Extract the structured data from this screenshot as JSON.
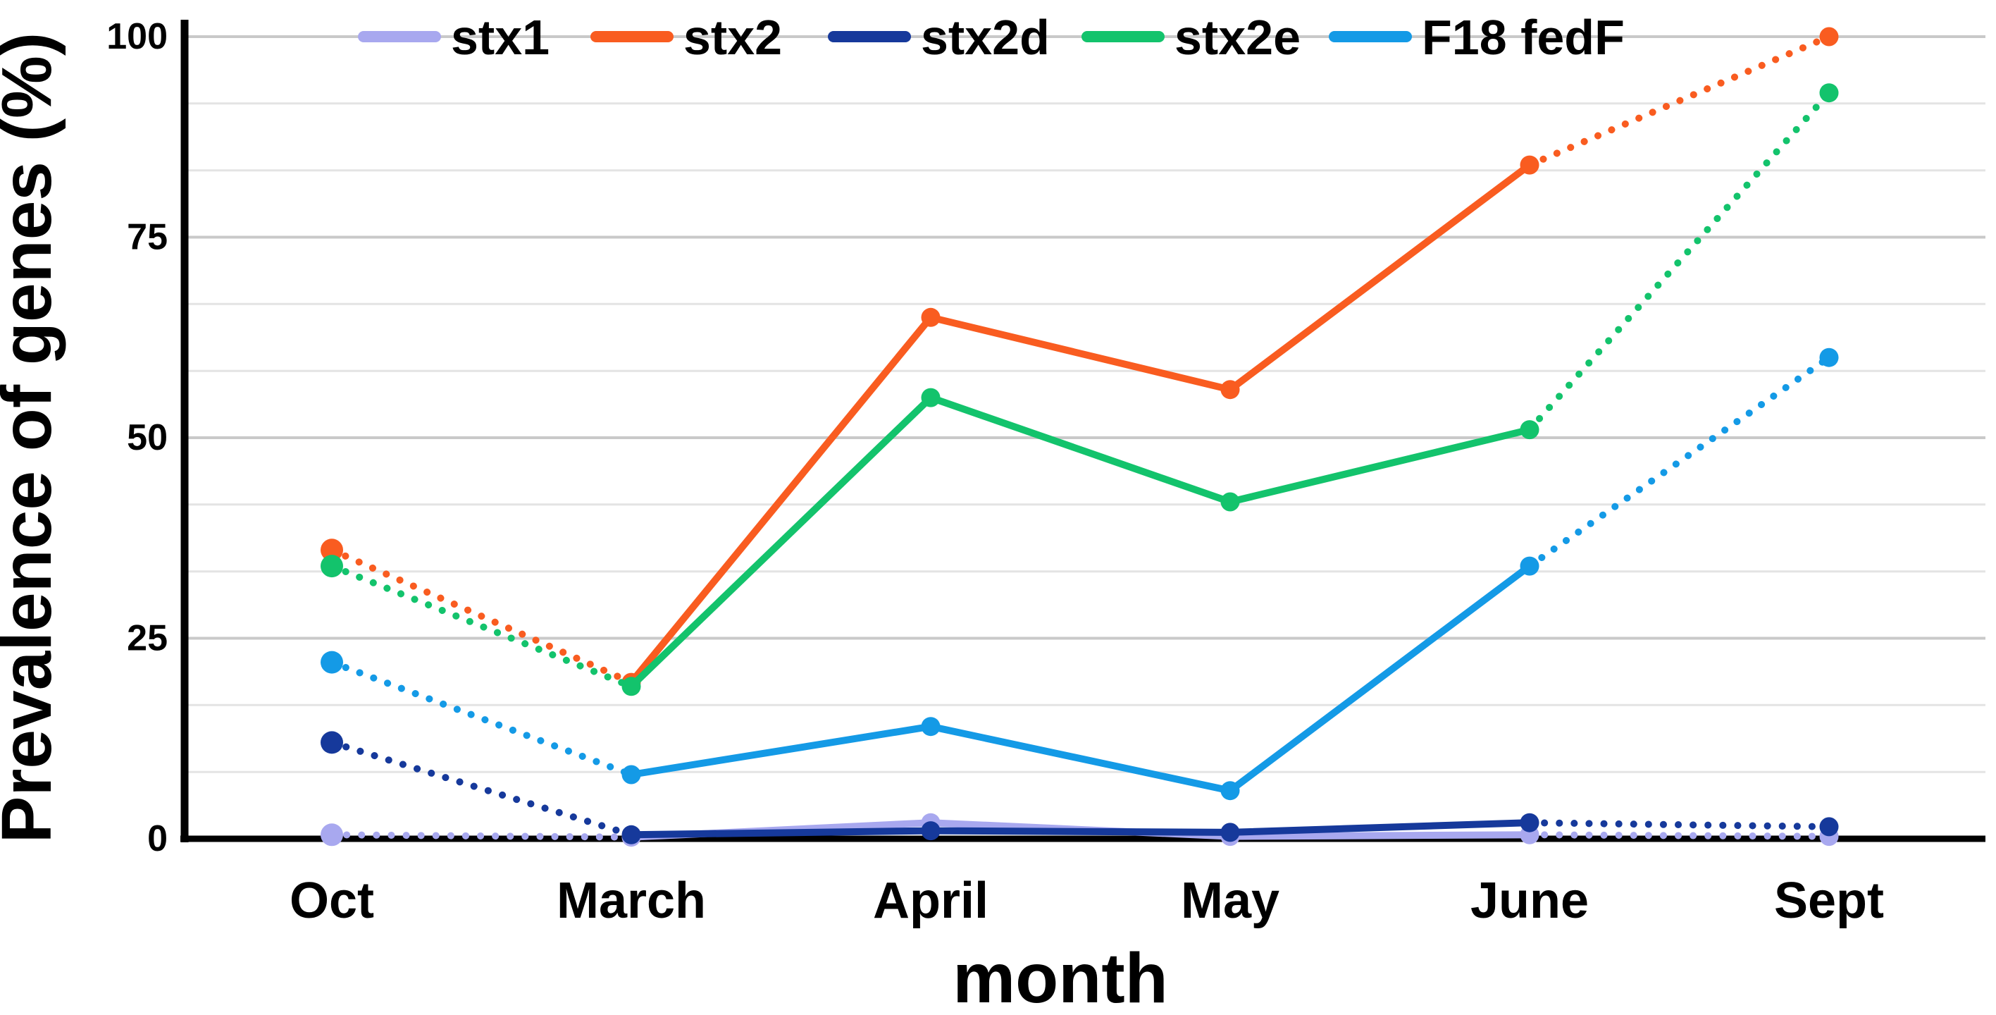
{
  "figure": {
    "background": "#ffffff",
    "text_color": "#000000",
    "axis_color": "#000000",
    "grid_minor_color": "#e4e4e4",
    "grid_major_color": "#c9c9c9"
  },
  "chart_data": {
    "type": "line",
    "title": "",
    "xlabel": "month",
    "ylabel": "Prevalence of genes (%)",
    "categories": [
      "Oct",
      "March",
      "April",
      "May",
      "June",
      "Sept"
    ],
    "ylim": [
      0,
      100
    ],
    "y_ticks": [
      0,
      25,
      50,
      75,
      100
    ],
    "y_minor_gridline_step": 8.3333,
    "grid": "horizontal gridlines on; minor lines at thirds between major ticks",
    "legend_position": "top-center, overlapping the 100% gridline",
    "line_style": "dotted between Oct-March and June-Sept, solid between March-June, round markers at every point",
    "series": [
      {
        "name": "stx1",
        "color": "#a8a8ef",
        "values": [
          0.5,
          0.2,
          2,
          0.3,
          0.5,
          0.3
        ]
      },
      {
        "name": "stx2",
        "color": "#f95c20",
        "values": [
          36,
          19.5,
          65,
          56,
          84,
          100
        ]
      },
      {
        "name": "stx2d",
        "color": "#16399b",
        "values": [
          12,
          0.5,
          1,
          0.8,
          2,
          1.5
        ]
      },
      {
        "name": "stx2e",
        "color": "#13c36c",
        "values": [
          34,
          19,
          55,
          42,
          51,
          93
        ]
      },
      {
        "name": "F18 fedF",
        "color": "#149ae6",
        "values": [
          22,
          8,
          14,
          6,
          34,
          60
        ]
      }
    ]
  }
}
